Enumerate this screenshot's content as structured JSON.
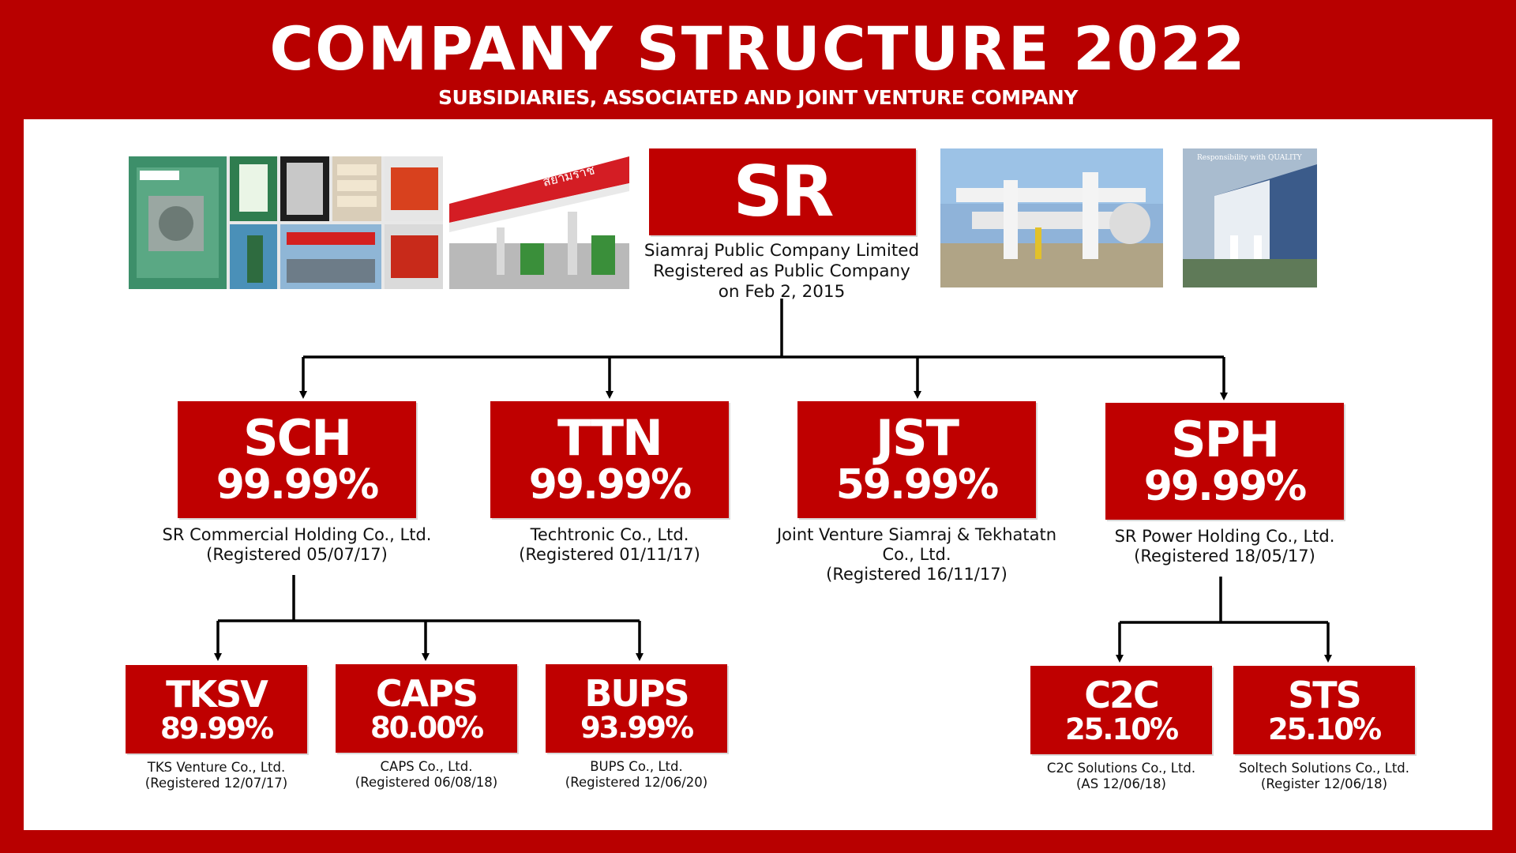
{
  "header": {
    "title": "COMPANY STRUCTURE 2022",
    "subtitle": "SUBSIDIARIES, ASSOCIATED AND JOINT VENTURE COMPANY"
  },
  "colors": {
    "brand_red": "#bf0000",
    "background_red": "#b80000"
  },
  "parent": {
    "code": "SR",
    "name": "Siamraj Public Company Limited",
    "line2": "Registered as Public Company",
    "line3": "on Feb 2, 2015"
  },
  "photos": {
    "station_sign_text": "สยามราช",
    "building_sign_text": "Responsibility with QUALITY"
  },
  "subsidiaries": [
    {
      "code": "SCH",
      "pct": "99.99%",
      "name": "SR Commercial Holding Co., Ltd.",
      "reg": "(Registered 05/07/17)"
    },
    {
      "code": "TTN",
      "pct": "99.99%",
      "name": "Techtronic Co., Ltd.",
      "reg": "(Registered 01/11/17)"
    },
    {
      "code": "JST",
      "pct": "59.99%",
      "name": "Joint Venture Siamraj & Tekhatatn",
      "name2": "Co., Ltd.",
      "reg": "(Registered 16/11/17)"
    },
    {
      "code": "SPH",
      "pct": "99.99%",
      "name": "SR Power Holding Co., Ltd.",
      "reg": "(Registered 18/05/17)"
    }
  ],
  "sch_children": [
    {
      "code": "TKSV",
      "pct": "89.99%",
      "name": "TKS Venture Co., Ltd.",
      "reg": "(Registered 12/07/17)"
    },
    {
      "code": "CAPS",
      "pct": "80.00%",
      "name": "CAPS Co., Ltd.",
      "reg": "(Registered 06/08/18)"
    },
    {
      "code": "BUPS",
      "pct": "93.99%",
      "name": "BUPS Co., Ltd.",
      "reg": "(Registered 12/06/20)"
    }
  ],
  "sph_children": [
    {
      "code": "C2C",
      "pct": "25.10%",
      "name": "C2C Solutions Co., Ltd.",
      "reg": "(AS 12/06/18)"
    },
    {
      "code": "STS",
      "pct": "25.10%",
      "name": "Soltech Solutions Co., Ltd.",
      "reg": "(Register 12/06/18)"
    }
  ]
}
